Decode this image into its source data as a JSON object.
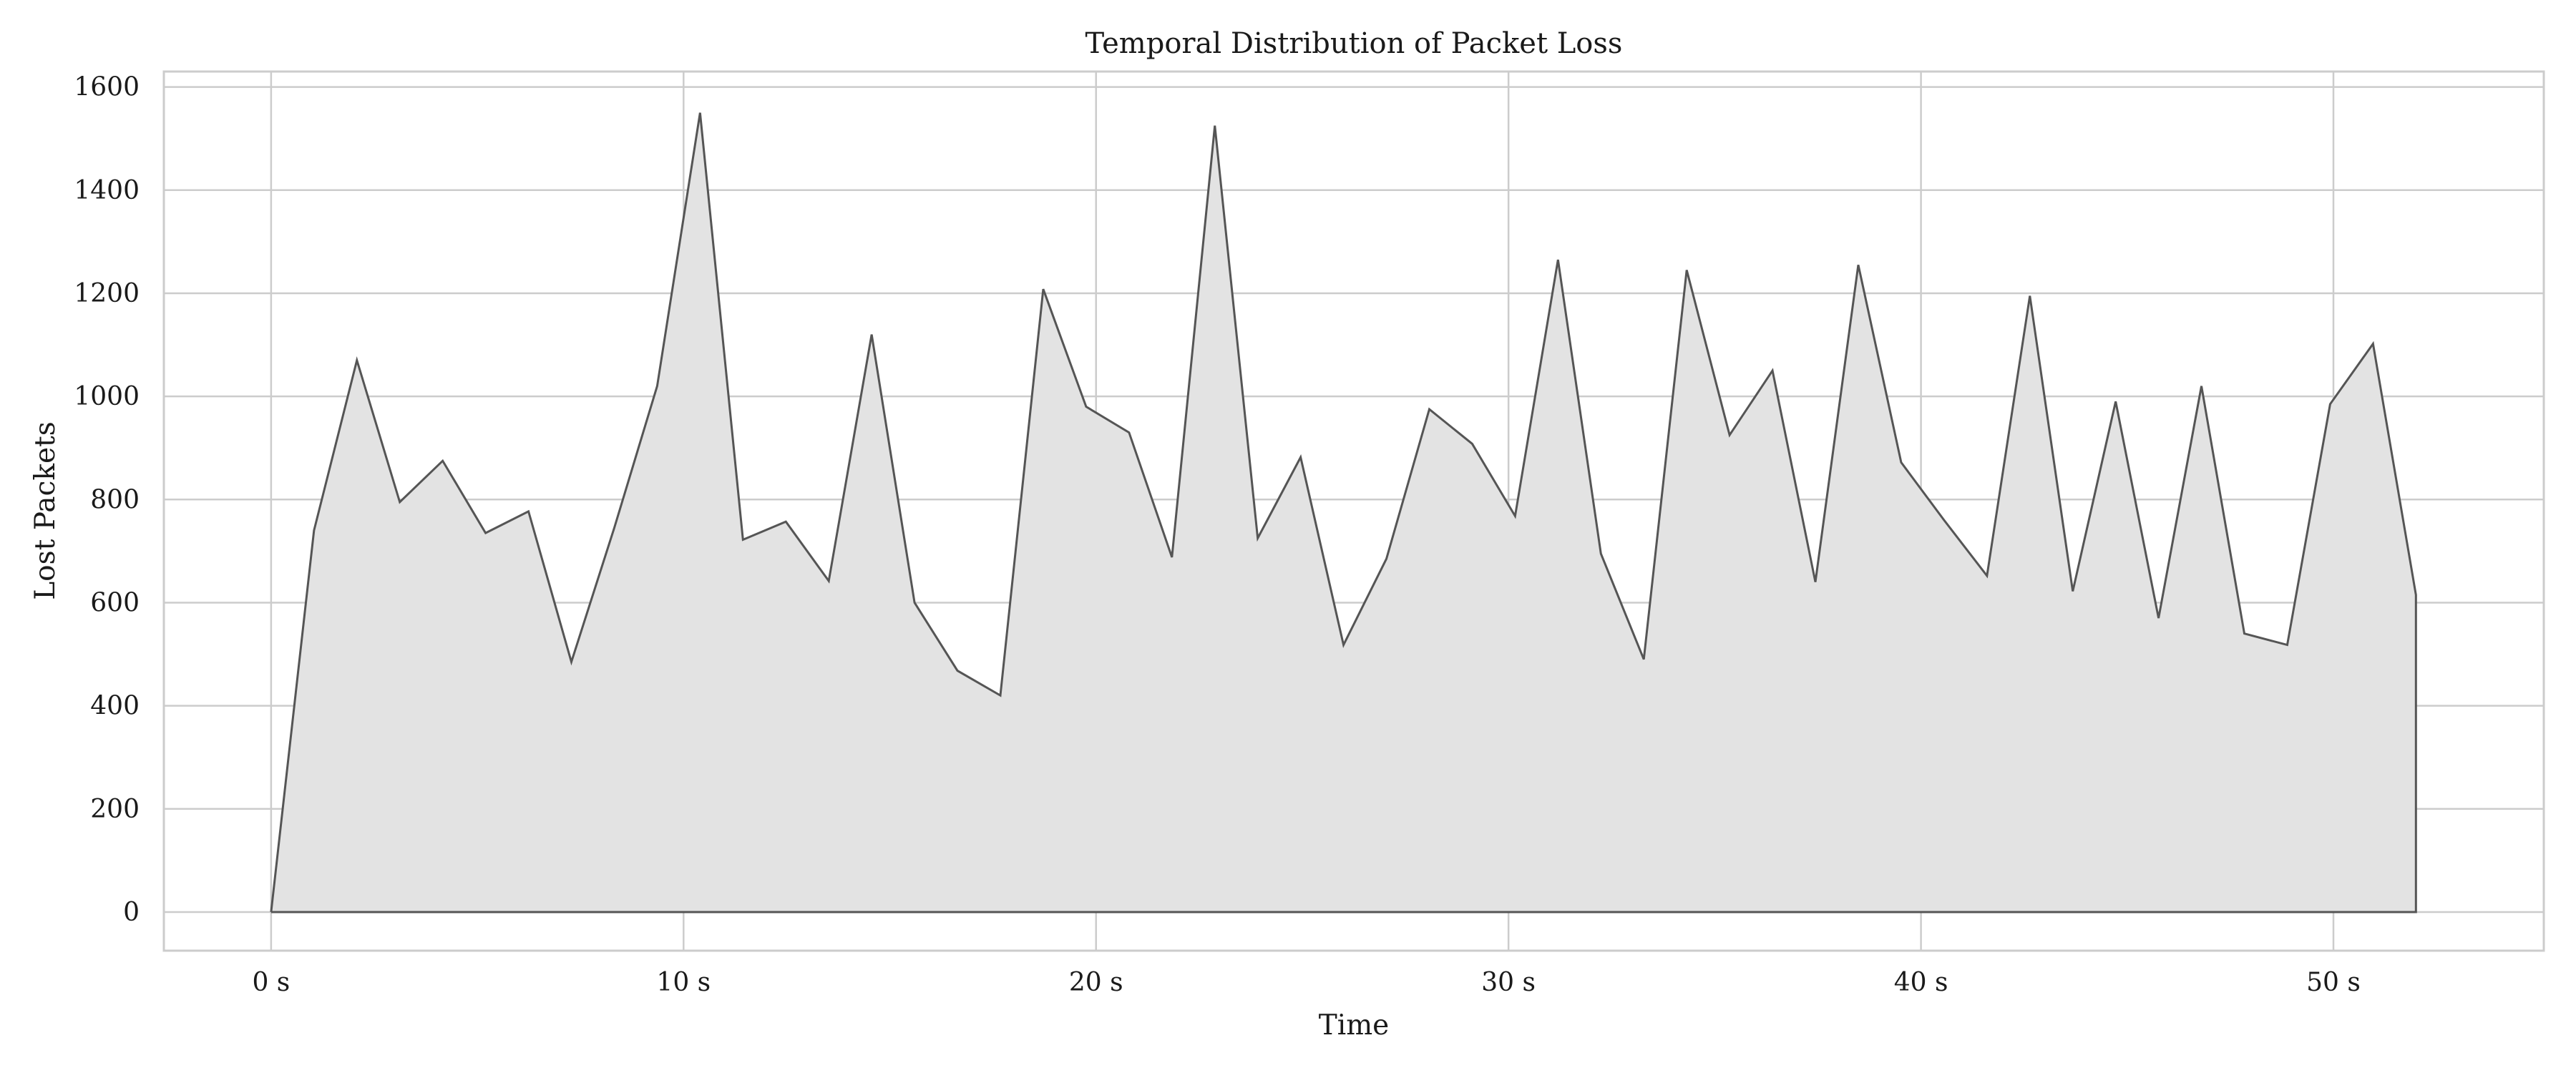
{
  "chart_data": {
    "type": "area",
    "title": "Temporal Distribution of Packet Loss",
    "xlabel": "Time",
    "ylabel": "Lost Packets",
    "x_unit_suffix": " s",
    "xlim": [
      -2.6,
      55.1
    ],
    "ylim": [
      -75,
      1630
    ],
    "x_ticks": [
      0,
      10,
      20,
      30,
      40,
      50
    ],
    "y_ticks": [
      0,
      200,
      400,
      600,
      800,
      1000,
      1200,
      1400,
      1600
    ],
    "grid": true,
    "legend": "none",
    "colors": {
      "fill": "#e3e3e3",
      "line": "#555555",
      "grid": "#cccccc",
      "spine": "#cccccc"
    },
    "x": [
      0,
      1.04,
      2.08,
      3.12,
      4.16,
      5.2,
      6.24,
      7.28,
      8.32,
      9.36,
      10.4,
      11.44,
      12.48,
      13.52,
      14.56,
      15.6,
      16.64,
      17.68,
      18.72,
      19.76,
      20.8,
      21.84,
      22.88,
      23.92,
      24.96,
      26.0,
      27.04,
      28.08,
      29.12,
      30.16,
      31.2,
      32.24,
      33.28,
      34.32,
      35.36,
      36.4,
      37.44,
      38.48,
      39.52,
      40.56,
      41.6,
      42.64,
      43.68,
      44.72,
      45.76,
      46.8,
      47.84,
      48.88,
      49.92,
      50.96,
      52.0,
      52.0
    ],
    "y": [
      0,
      740,
      1070,
      795,
      875,
      735,
      777,
      485,
      745,
      1020,
      1550,
      722,
      757,
      642,
      1120,
      600,
      468,
      420,
      1208,
      980,
      930,
      688,
      1525,
      725,
      882,
      518,
      685,
      975,
      908,
      768,
      1265,
      695,
      490,
      1245,
      925,
      1050,
      640,
      1255,
      872,
      760,
      652,
      1195,
      622,
      990,
      570,
      1020,
      540,
      518,
      985,
      1102,
      615,
      0
    ]
  }
}
